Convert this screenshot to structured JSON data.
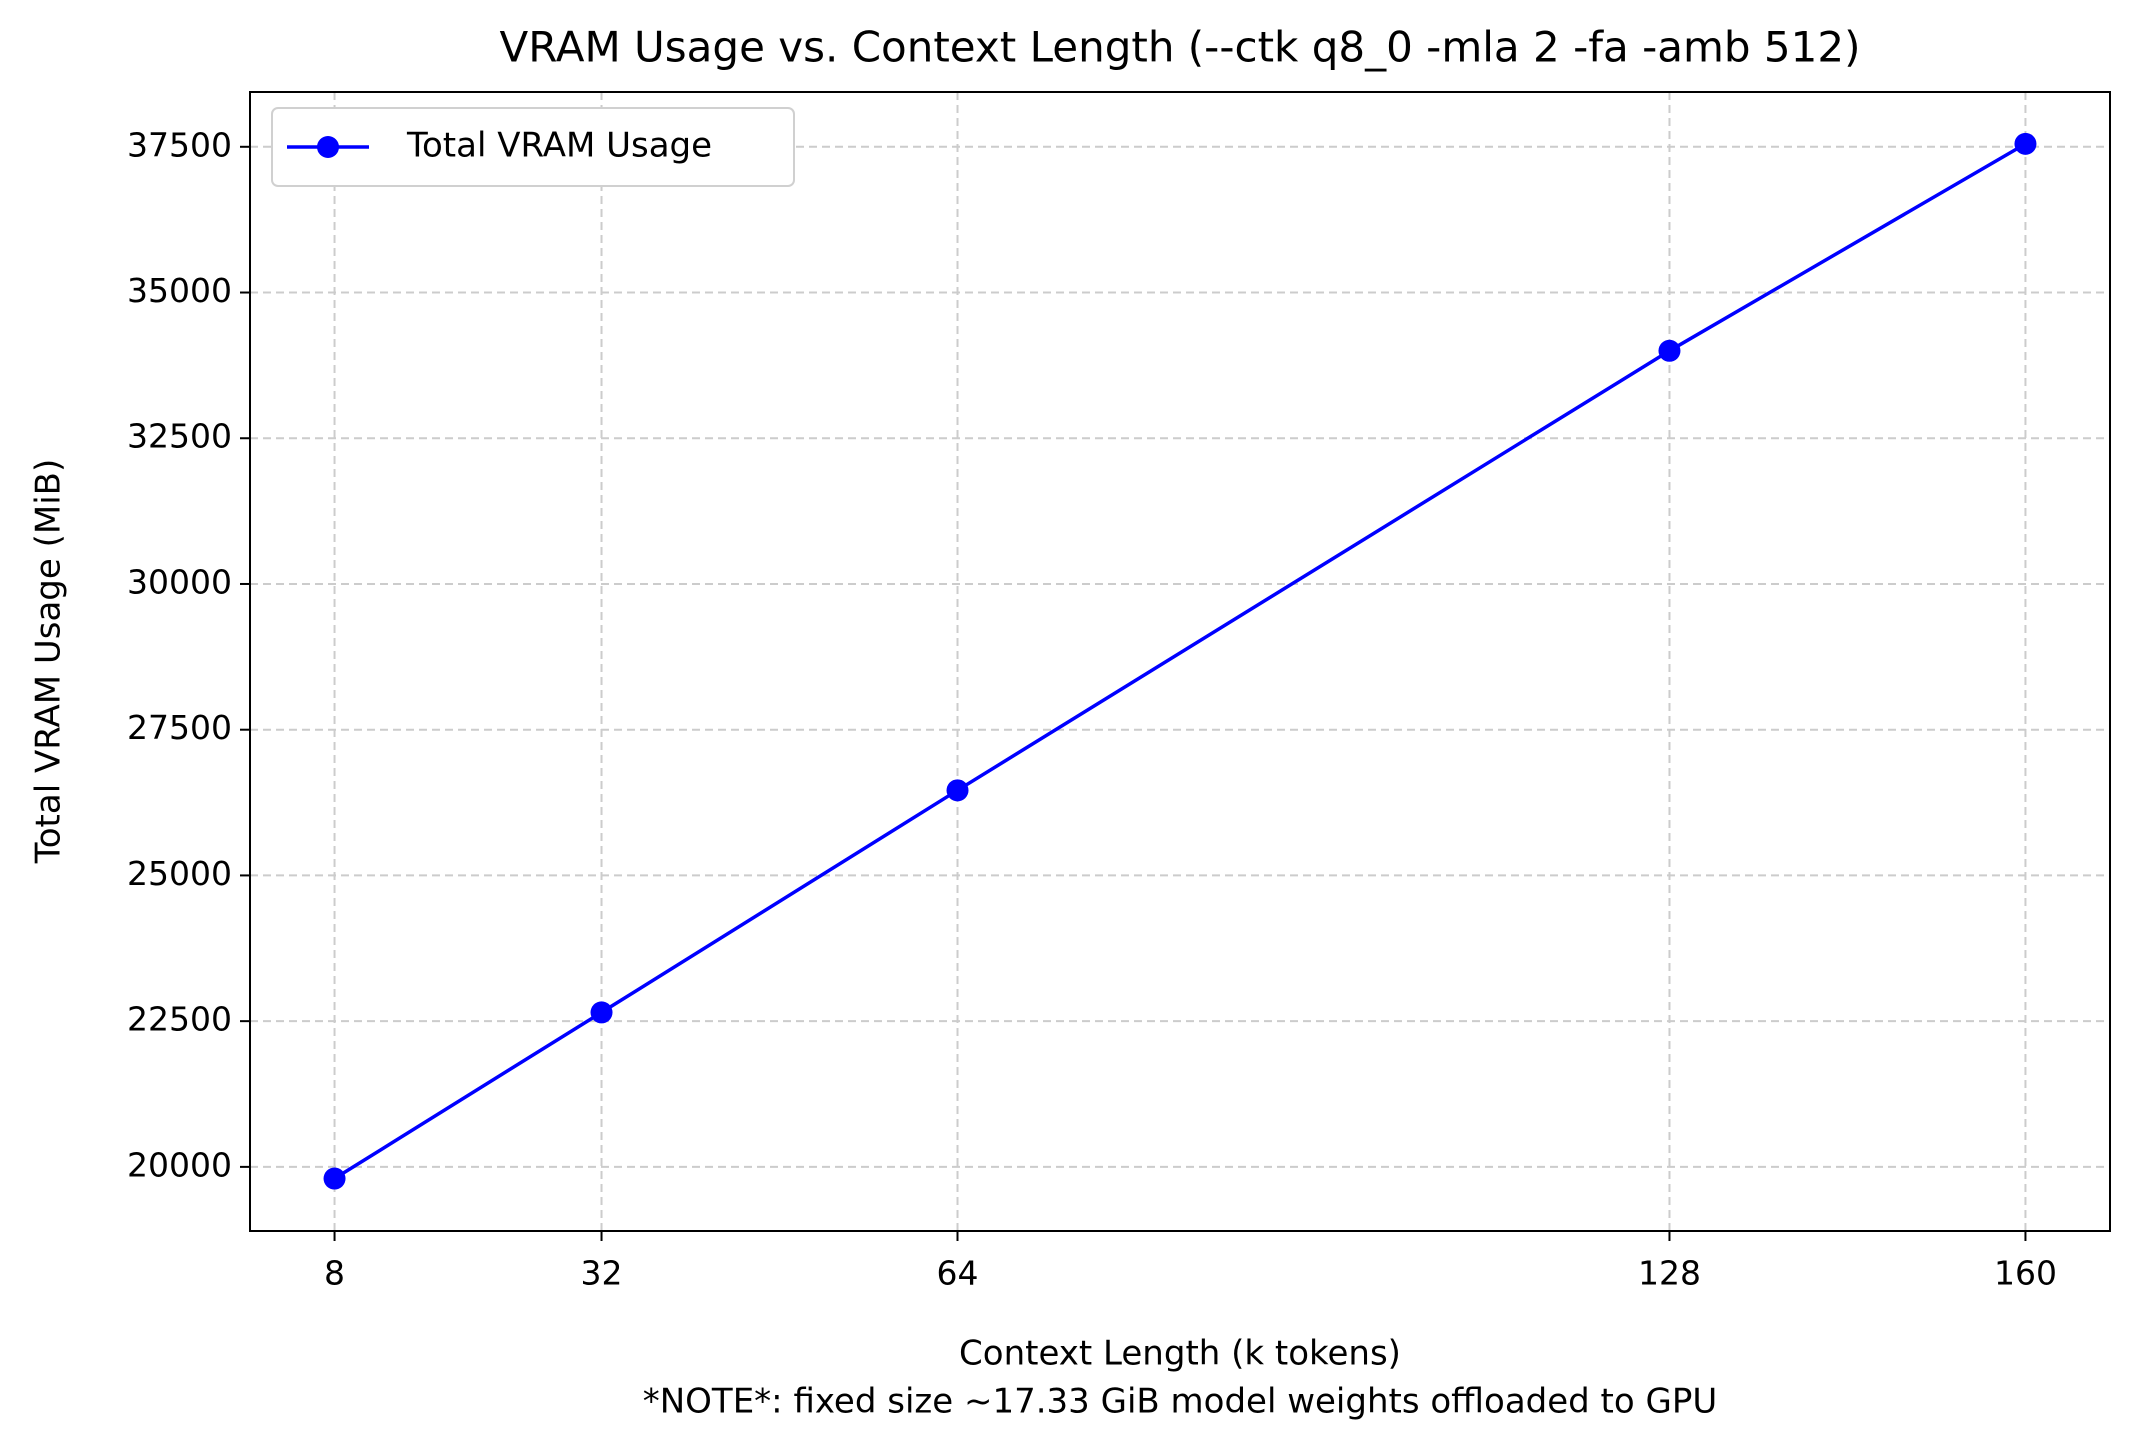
{
  "chart_data": {
    "type": "line",
    "title": "VRAM Usage vs. Context Length (--ctk q8_0 -mla 2 -fa -amb 512)",
    "x_label": "Context Length (k tokens)",
    "note": "*NOTE*: fixed size ~17.33 GiB model weights offloaded to GPU",
    "y_label": "Total VRAM Usage (MiB)",
    "x": [
      8,
      32,
      64,
      128,
      160
    ],
    "series": [
      {
        "name": "Total VRAM Usage",
        "color": "#0000ff",
        "values": [
          19800,
          22650,
          26460,
          34000,
          37550
        ]
      }
    ],
    "xlim": [
      0.4,
      167.6
    ],
    "xticks": [
      8,
      32,
      64,
      128,
      160
    ],
    "ylim": [
      18900,
      38440
    ],
    "yticks": [
      20000,
      22500,
      25000,
      27500,
      30000,
      32500,
      35000,
      37500
    ],
    "grid": true,
    "legend": "upper left"
  }
}
